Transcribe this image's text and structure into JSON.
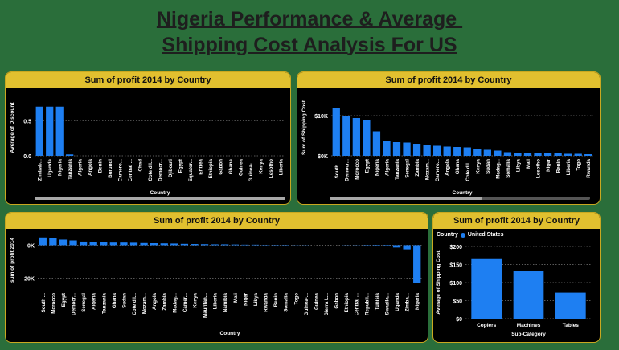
{
  "page": {
    "title_line1": "Nigeria Performance & Average ",
    "title_line2": "Shipping Cost Analysis For US"
  },
  "colors": {
    "bar": "#1e7ff2",
    "header": "#e1c02f",
    "background": "#2a6e3a",
    "panel": "#000000"
  },
  "panels": [
    {
      "title": "Sum of profit 2014 by Country"
    },
    {
      "title": "Sum of profit 2014 by Country"
    },
    {
      "title": "Sum of profit 2014 by Country"
    },
    {
      "title": "Sum of profit 2014 by Country"
    }
  ],
  "legend": {
    "label": "Country",
    "item": "United States"
  },
  "chart_data": [
    {
      "type": "bar",
      "ylabel": "Average of Discount",
      "xlabel": "Country",
      "yticks": [
        "0.5",
        "0.0"
      ],
      "ylim": [
        0,
        0.8
      ],
      "categories": [
        "Zimbab...",
        "Uganda",
        "Nigeria",
        "Tanzania",
        "Algeria",
        "Angola",
        "Benin",
        "Burundi",
        "Camero...",
        "Central ...",
        "Chad",
        "Cote d'I...",
        "Democr...",
        "Djibouti",
        "Egypt",
        "Equator...",
        "Eritrea",
        "Ethiopia",
        "Gabon",
        "Ghana",
        "Guinea",
        "Guinea-...",
        "Kenya",
        "Lesotho",
        "Liberia"
      ],
      "values": [
        0.7,
        0.7,
        0.7,
        0.02,
        0,
        0,
        0,
        0,
        0,
        0,
        0,
        0,
        0,
        0,
        0,
        0,
        0,
        0,
        0,
        0,
        0,
        0,
        0,
        0,
        0
      ]
    },
    {
      "type": "bar",
      "ylabel": "Sum of Shipping Cost",
      "xlabel": "Country",
      "yticks": [
        "$10K",
        "$0K"
      ],
      "ylim": [
        0,
        14000
      ],
      "categories": [
        "South ...",
        "Democr...",
        "Morocco",
        "Egypt",
        "Nigeria",
        "Algeria",
        "Tanzania",
        "Senegal",
        "Zambia",
        "Mozam...",
        "Camero...",
        "Angola",
        "Ghana",
        "Cote d'I...",
        "Kenya",
        "Sudan",
        "Madag...",
        "Somalia",
        "Libya",
        "Mali",
        "Lesotho",
        "Niger",
        "Benin",
        "Liberia",
        "Togo",
        "Rwanda"
      ],
      "values": [
        11800,
        10000,
        9400,
        8800,
        6100,
        3600,
        3400,
        3300,
        3000,
        2600,
        2500,
        2300,
        2200,
        2100,
        1700,
        1500,
        1300,
        900,
        800,
        800,
        700,
        600,
        600,
        500,
        500,
        400
      ]
    },
    {
      "type": "bar",
      "ylabel": "sum of profit 2014",
      "xlabel": "Country",
      "yticks": [
        "0K",
        "-20K"
      ],
      "ylim": [
        -26000,
        8000
      ],
      "categories": [
        "South ...",
        "Morocco",
        "Egypt",
        "Democr...",
        "Senegal",
        "Algeria",
        "Tanzania",
        "Ghana",
        "Sudan",
        "Cote d'I...",
        "Mozam...",
        "Angola",
        "Zambia",
        "Madag...",
        "Camer...",
        "Kenya",
        "Mauritan...",
        "Liberia",
        "Namibia",
        "Mali",
        "Niger",
        "Libya",
        "Rwanda",
        "Benin",
        "Somalia",
        "Togo",
        "Guinea-...",
        "Guinea",
        "Sierra L...",
        "Gabon",
        "Ethiopia",
        "Central ...",
        "Republi...",
        "Tunisia",
        "Swazila...",
        "Uganda",
        "Zimba...",
        "Nigeria"
      ],
      "values": [
        4700,
        4200,
        3400,
        2900,
        2200,
        2000,
        1700,
        1600,
        1600,
        1500,
        1300,
        1200,
        1100,
        1000,
        800,
        700,
        600,
        500,
        500,
        400,
        300,
        300,
        200,
        200,
        200,
        100,
        100,
        0,
        0,
        0,
        -100,
        -100,
        -200,
        -300,
        -400,
        -1400,
        -2500,
        -23000
      ]
    },
    {
      "type": "bar",
      "ylabel": "Average of Shipping Cost",
      "xlabel": "Sub-Category",
      "yticks": [
        "$200",
        "$150",
        "$100",
        "$50",
        "$0"
      ],
      "ylim": [
        0,
        200
      ],
      "categories": [
        "Copiers",
        "Machines",
        "Tables"
      ],
      "values": [
        165,
        132,
        72
      ]
    }
  ]
}
